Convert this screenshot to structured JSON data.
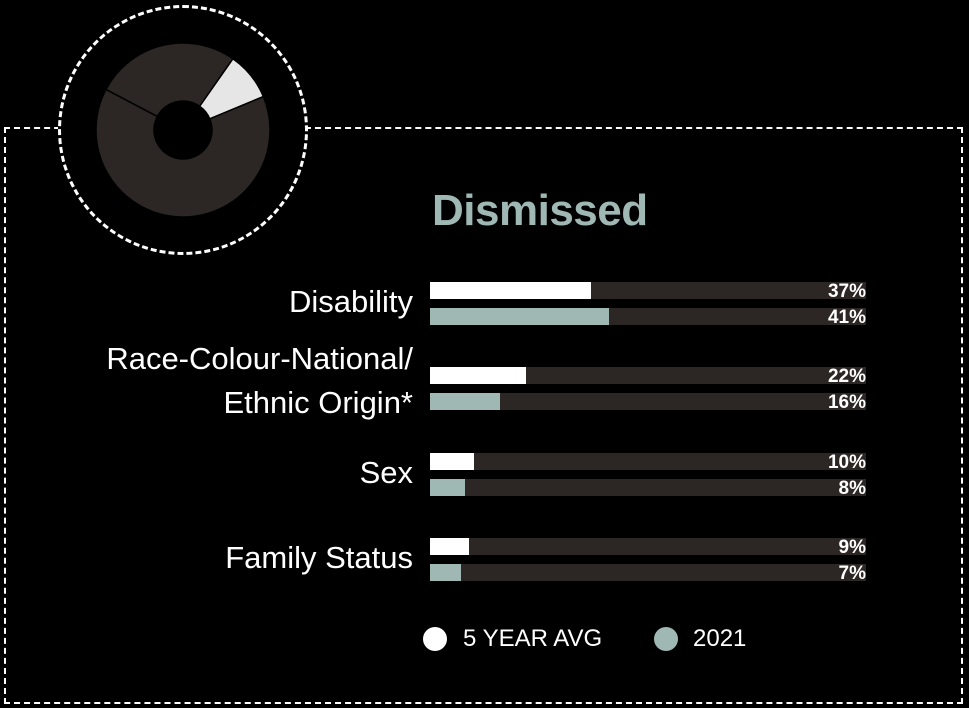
{
  "colors": {
    "background": "#000000",
    "title": "#9fb8b3",
    "series_5yr": "#ffffff",
    "series_2021": "#9fb8b3",
    "track": "#2c2625",
    "donut_dark": "#2c2625",
    "donut_highlight": "#e6e6e6"
  },
  "chart_data": {
    "type": "bar",
    "orientation": "horizontal",
    "title": "Dismissed",
    "categories": [
      "Disability",
      "Race-Colour-National/\nEthnic Origin*",
      "Sex",
      "Family Status"
    ],
    "series": [
      {
        "name": "5 YEAR AVG",
        "values": [
          37,
          22,
          10,
          9
        ],
        "labels": [
          "37%",
          "22%",
          "10%",
          "9%"
        ]
      },
      {
        "name": "2021",
        "values": [
          41,
          16,
          8,
          7
        ],
        "labels": [
          "41%",
          "16%",
          "8%",
          "7%"
        ]
      }
    ],
    "xlim": [
      0,
      100
    ],
    "legend_position": "bottom",
    "grid": false
  },
  "icon": {
    "name": "donut-chart-icon",
    "segments": [
      {
        "share": 0.09,
        "highlight": true
      },
      {
        "share": 0.64,
        "highlight": false
      },
      {
        "share": 0.27,
        "highlight": false
      }
    ]
  }
}
